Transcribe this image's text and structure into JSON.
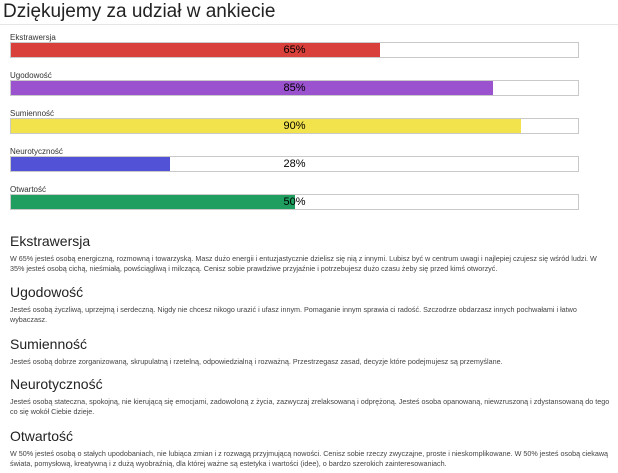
{
  "page": {
    "title": "Dziękujemy za udział w ankiecie"
  },
  "traits": [
    {
      "name": "Ekstrawersja",
      "percent": 65,
      "percent_label": "65%",
      "color": "#d9403b"
    },
    {
      "name": "Ugodowość",
      "percent": 85,
      "percent_label": "85%",
      "color": "#9b52cf"
    },
    {
      "name": "Sumienność",
      "percent": 90,
      "percent_label": "90%",
      "color": "#f2e24c"
    },
    {
      "name": "Neurotyczność",
      "percent": 28,
      "percent_label": "28%",
      "color": "#5252d6"
    },
    {
      "name": "Otwartość",
      "percent": 50,
      "percent_label": "50%",
      "color": "#1f9e5f"
    }
  ],
  "sections": [
    {
      "heading": "Ekstrawersja",
      "text": "W 65% jesteś osobą energiczną, rozmowną i towarzyską. Masz dużo energii i entuzjastycznie dzielisz się nią z innymi. Lubisz być w centrum uwagi i najlepiej czujesz się wśród ludzi. W 35% jesteś osobą cichą, nieśmiałą, powściągliwą i milczącą. Cenisz sobie prawdziwe przyjaźnie i potrzebujesz dużo czasu żeby się przed kimś otworzyć."
    },
    {
      "heading": "Ugodowość",
      "text": "Jesteś osobą życzliwą, uprzejmą i serdeczną. Nigdy nie chcesz nikogo urazić i ufasz innym. Pomaganie innym sprawia ci radość. Szczodrze obdarzasz innych pochwałami i łatwo wybaczasz."
    },
    {
      "heading": "Sumienność",
      "text": "Jesteś osobą dobrze zorganizowaną, skrupulatną i rzetelną, odpowiedzialną i rozważną. Przestrzegasz zasad, decyzje które podejmujesz są przemyślane."
    },
    {
      "heading": "Neurotyczność",
      "text": "Jesteś osobą stateczna, spokojną, nie kierującą się emocjami, zadowoloną z życia, zazwyczaj zrelaksowaną i odprężoną. Jesteś osoba opanowaną, niewzruszoną i zdystansowaną do tego co się wokół Ciebie dzieje."
    },
    {
      "heading": "Otwartość",
      "text": "W 50% jesteś osobą o stałych upodobaniach, nie lubiąca zmian i z rozwagą przyjmującą nowości. Cenisz sobie rzeczy zwyczajne, proste i nieskomplikowane. W 50% jesteś osobą ciekawą świata, pomysłową, kreatywną i z dużą wyobraźnią, dla której ważne są estetyka i wartości (idee), o bardzo szerokich zainteresowaniach."
    }
  ]
}
